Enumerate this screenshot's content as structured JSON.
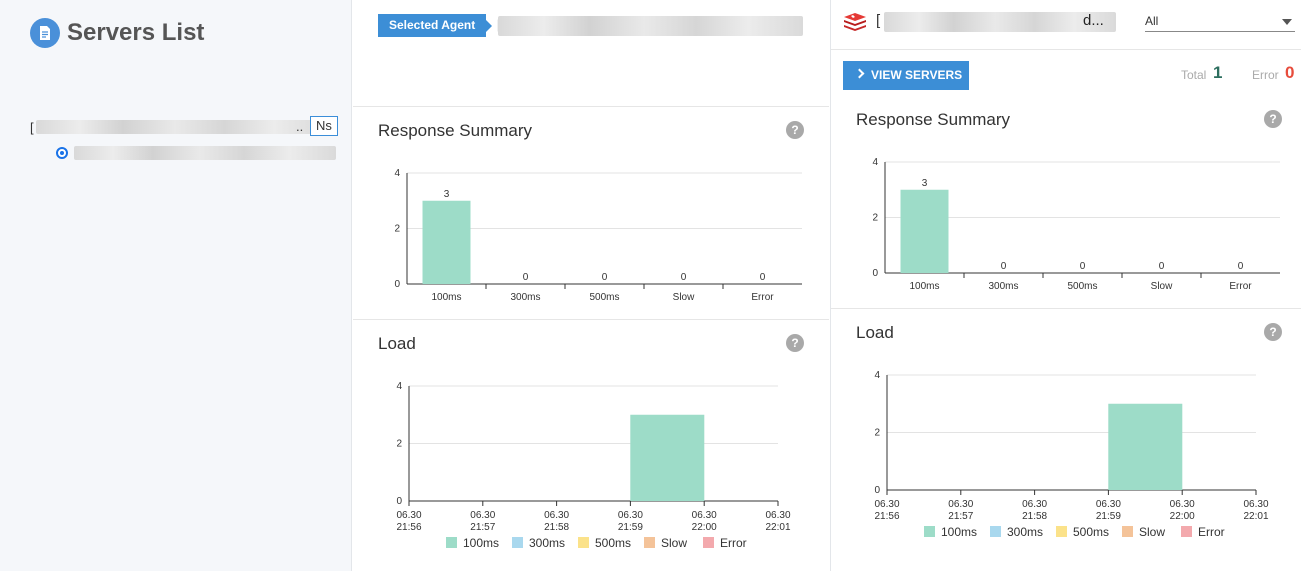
{
  "left": {
    "title": "Servers List",
    "group_bracket": "[",
    "group_dots": "..",
    "ns_label": "Ns"
  },
  "middle": {
    "agent_tag": "Selected Agent",
    "agent_bracket": "[",
    "response_title": "Response Summary",
    "load_title": "Load"
  },
  "right": {
    "app_bracket": "[",
    "app_dots": "d...",
    "filter_value": "All",
    "view_servers": "VIEW SERVERS",
    "total_label": "Total",
    "total_value": "1",
    "error_label": "Error",
    "error_value": "0",
    "response_title": "Response Summary",
    "load_title": "Load"
  },
  "help_glyph": "?",
  "colors": {
    "accent": "#3c8ed6",
    "total": "#2c6e5e",
    "error": "#e74c3c",
    "redis": "#c62828"
  },
  "chart_data": [
    {
      "id": "mid-response",
      "type": "bar",
      "title": "Response Summary",
      "categories": [
        "100ms",
        "300ms",
        "500ms",
        "Slow",
        "Error"
      ],
      "values": [
        3,
        0,
        0,
        0,
        0
      ],
      "ylim": [
        0,
        4
      ],
      "yticks": [
        0,
        2,
        4
      ],
      "grid": true,
      "color": "#9ddcc8"
    },
    {
      "id": "mid-load",
      "type": "bar",
      "title": "Load",
      "x": [
        "06.30 21:56",
        "06.30 21:57",
        "06.30 21:58",
        "06.30 21:59",
        "06.30 22:00",
        "06.30 22:01"
      ],
      "series": [
        {
          "name": "100ms",
          "color": "#9ddcc8",
          "values": [
            0,
            0,
            0,
            3,
            0,
            0
          ]
        },
        {
          "name": "300ms",
          "color": "#a9d8ee",
          "values": [
            0,
            0,
            0,
            0,
            0,
            0
          ]
        },
        {
          "name": "500ms",
          "color": "#fbe28a",
          "values": [
            0,
            0,
            0,
            0,
            0,
            0
          ]
        },
        {
          "name": "Slow",
          "color": "#f4c399",
          "values": [
            0,
            0,
            0,
            0,
            0,
            0
          ]
        },
        {
          "name": "Error",
          "color": "#f3a9ad",
          "values": [
            0,
            0,
            0,
            0,
            0,
            0
          ]
        }
      ],
      "ylim": [
        0,
        4
      ],
      "yticks": [
        0,
        2,
        4
      ],
      "grid": true,
      "legend": "bottom"
    },
    {
      "id": "right-response",
      "type": "bar",
      "title": "Response Summary",
      "categories": [
        "100ms",
        "300ms",
        "500ms",
        "Slow",
        "Error"
      ],
      "values": [
        3,
        0,
        0,
        0,
        0
      ],
      "ylim": [
        0,
        4
      ],
      "yticks": [
        0,
        2,
        4
      ],
      "grid": true,
      "color": "#9ddcc8"
    },
    {
      "id": "right-load",
      "type": "bar",
      "title": "Load",
      "x": [
        "06.30 21:56",
        "06.30 21:57",
        "06.30 21:58",
        "06.30 21:59",
        "06.30 22:00",
        "06.30 22:01"
      ],
      "series": [
        {
          "name": "100ms",
          "color": "#9ddcc8",
          "values": [
            0,
            0,
            0,
            3,
            0,
            0
          ]
        },
        {
          "name": "300ms",
          "color": "#a9d8ee",
          "values": [
            0,
            0,
            0,
            0,
            0,
            0
          ]
        },
        {
          "name": "500ms",
          "color": "#fbe28a",
          "values": [
            0,
            0,
            0,
            0,
            0,
            0
          ]
        },
        {
          "name": "Slow",
          "color": "#f4c399",
          "values": [
            0,
            0,
            0,
            0,
            0,
            0
          ]
        },
        {
          "name": "Error",
          "color": "#f3a9ad",
          "values": [
            0,
            0,
            0,
            0,
            0,
            0
          ]
        }
      ],
      "ylim": [
        0,
        4
      ],
      "yticks": [
        0,
        2,
        4
      ],
      "grid": true,
      "legend": "bottom"
    }
  ]
}
